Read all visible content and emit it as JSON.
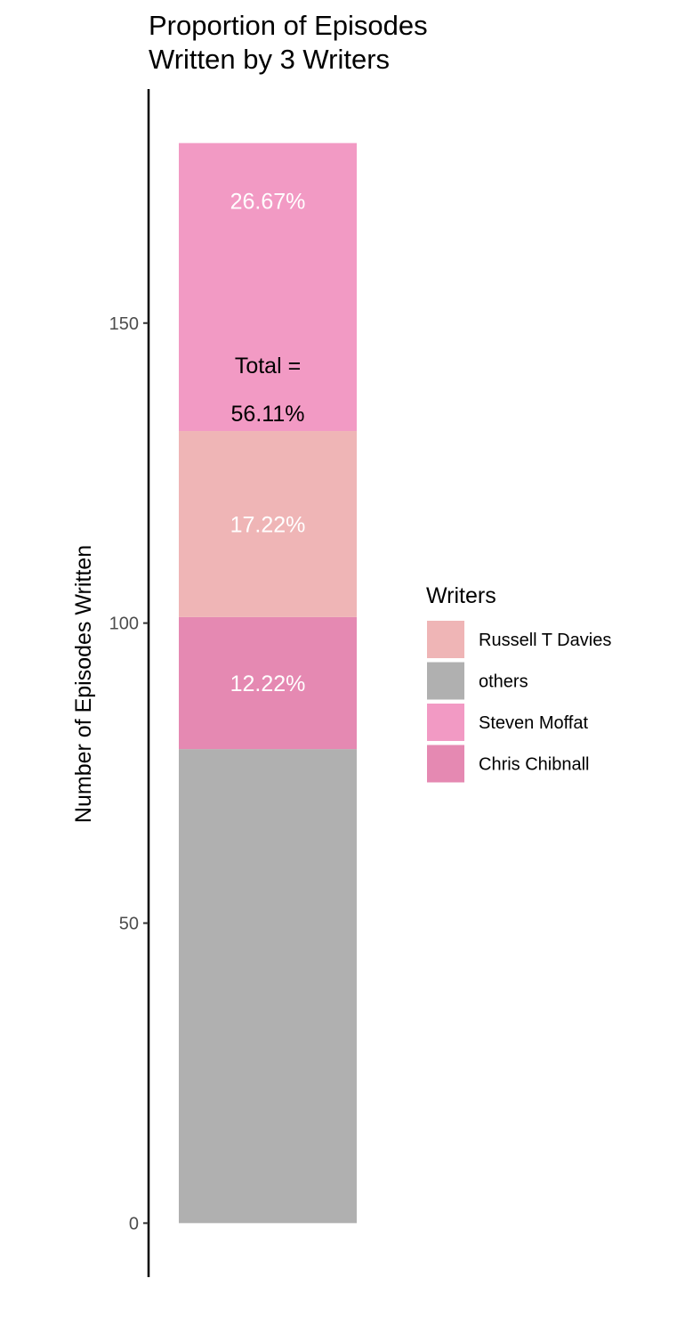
{
  "chart_data": {
    "type": "bar",
    "stacked": true,
    "title_lines": [
      "Proportion of Episodes",
      "Written by 3 Writers"
    ],
    "xlabel": "",
    "ylabel": "Number of Episodes Written",
    "ylim": [
      -9,
      189
    ],
    "yticks": [
      0,
      50,
      100,
      150
    ],
    "grid": false,
    "categories": [
      ""
    ],
    "series": [
      {
        "name": "others",
        "values": [
          79
        ],
        "color": "#b0b0b0",
        "label": ""
      },
      {
        "name": "Chris Chibnall",
        "values": [
          22
        ],
        "color": "#e589b2",
        "label": "12.22%"
      },
      {
        "name": "Russell T Davies",
        "values": [
          31
        ],
        "color": "#efb5b6",
        "label": "17.22%"
      },
      {
        "name": "Steven Moffat",
        "values": [
          48
        ],
        "color": "#f29ac4",
        "label": "26.67%"
      }
    ],
    "annotation": {
      "lines": [
        "Total =",
        "56.11%"
      ],
      "y": [
        143,
        135
      ]
    },
    "legend": {
      "title": "Writers",
      "position": "right",
      "items": [
        {
          "label": "Russell T Davies",
          "color": "#efb5b6"
        },
        {
          "label": "others",
          "color": "#b0b0b0"
        },
        {
          "label": "Steven Moffat",
          "color": "#f29ac4"
        },
        {
          "label": "Chris Chibnall",
          "color": "#e589b2"
        }
      ]
    }
  }
}
